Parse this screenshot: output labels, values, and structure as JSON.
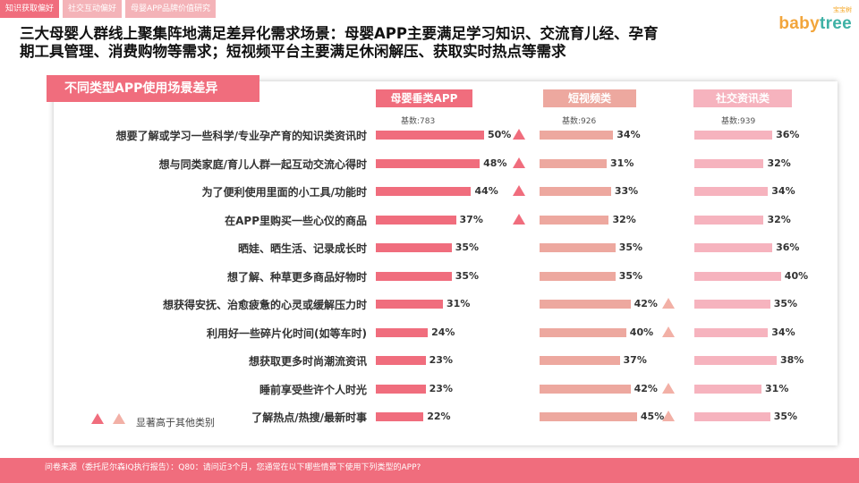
{
  "tabs": [
    "知识获取偏好",
    "社交互动偏好",
    "母婴APP品牌价值研究"
  ],
  "logo": {
    "zh": "宝宝树",
    "en_prefix": "baby",
    "en_suffix": "tree"
  },
  "title_line1": "三大母婴人群线上聚集阵地满足差异化需求场景：母婴APP主要满足学习知识、交流育儿经、孕育",
  "title_line2": "期工具管理、消费购物等需求；短视频平台主要满足休闲解压、获取实时热点等需求",
  "colors": {
    "accent": "#f06d7d",
    "app": "#f06d7d",
    "video": "#eda89f",
    "social": "#f6b3be",
    "tri_dark": "#f06d7d",
    "tri_light": "#f2b0a6"
  },
  "chart_data": {
    "type": "bar",
    "title": "不同类型APP使用场景差异",
    "categories": [
      "想要了解或学习一些科学/专业孕产育的知识类资讯时",
      "想与同类家庭/育儿人群一起互动交流心得时",
      "为了便利使用里面的小工具/功能时",
      "在APP里购买一些心仪的商品",
      "晒娃、晒生活、记录成长时",
      "想了解、种草更多商品好物时",
      "想获得安抚、治愈疲惫的心灵或缓解压力时",
      "利用好一些碎片化时间(如等车时)",
      "想获取更多时尚潮流资讯",
      "睡前享受些许个人时光",
      "了解热点/热搜/最新时事"
    ],
    "series": [
      {
        "name": "母婴垂类APP",
        "base": "基数:783",
        "values": [
          50,
          48,
          44,
          37,
          35,
          35,
          31,
          24,
          23,
          23,
          22
        ],
        "significant": [
          true,
          true,
          true,
          true,
          false,
          false,
          false,
          false,
          false,
          false,
          false
        ]
      },
      {
        "name": "短视频类",
        "base": "基数:926",
        "values": [
          34,
          31,
          33,
          32,
          35,
          35,
          42,
          40,
          37,
          42,
          45
        ],
        "significant": [
          false,
          false,
          false,
          false,
          false,
          false,
          true,
          true,
          false,
          true,
          true
        ]
      },
      {
        "name": "社交资讯类",
        "base": "基数:939",
        "values": [
          36,
          32,
          34,
          32,
          36,
          40,
          35,
          34,
          38,
          31,
          35
        ],
        "significant": [
          false,
          false,
          false,
          false,
          false,
          false,
          false,
          false,
          false,
          false,
          false
        ]
      }
    ],
    "unit": "%",
    "legend": "显著高于其他类别"
  },
  "footer": "问卷来源（委托尼尔森IQ执行报告）：Q80：请问近3个月，您通常在以下哪些情景下使用下列类型的APP?"
}
